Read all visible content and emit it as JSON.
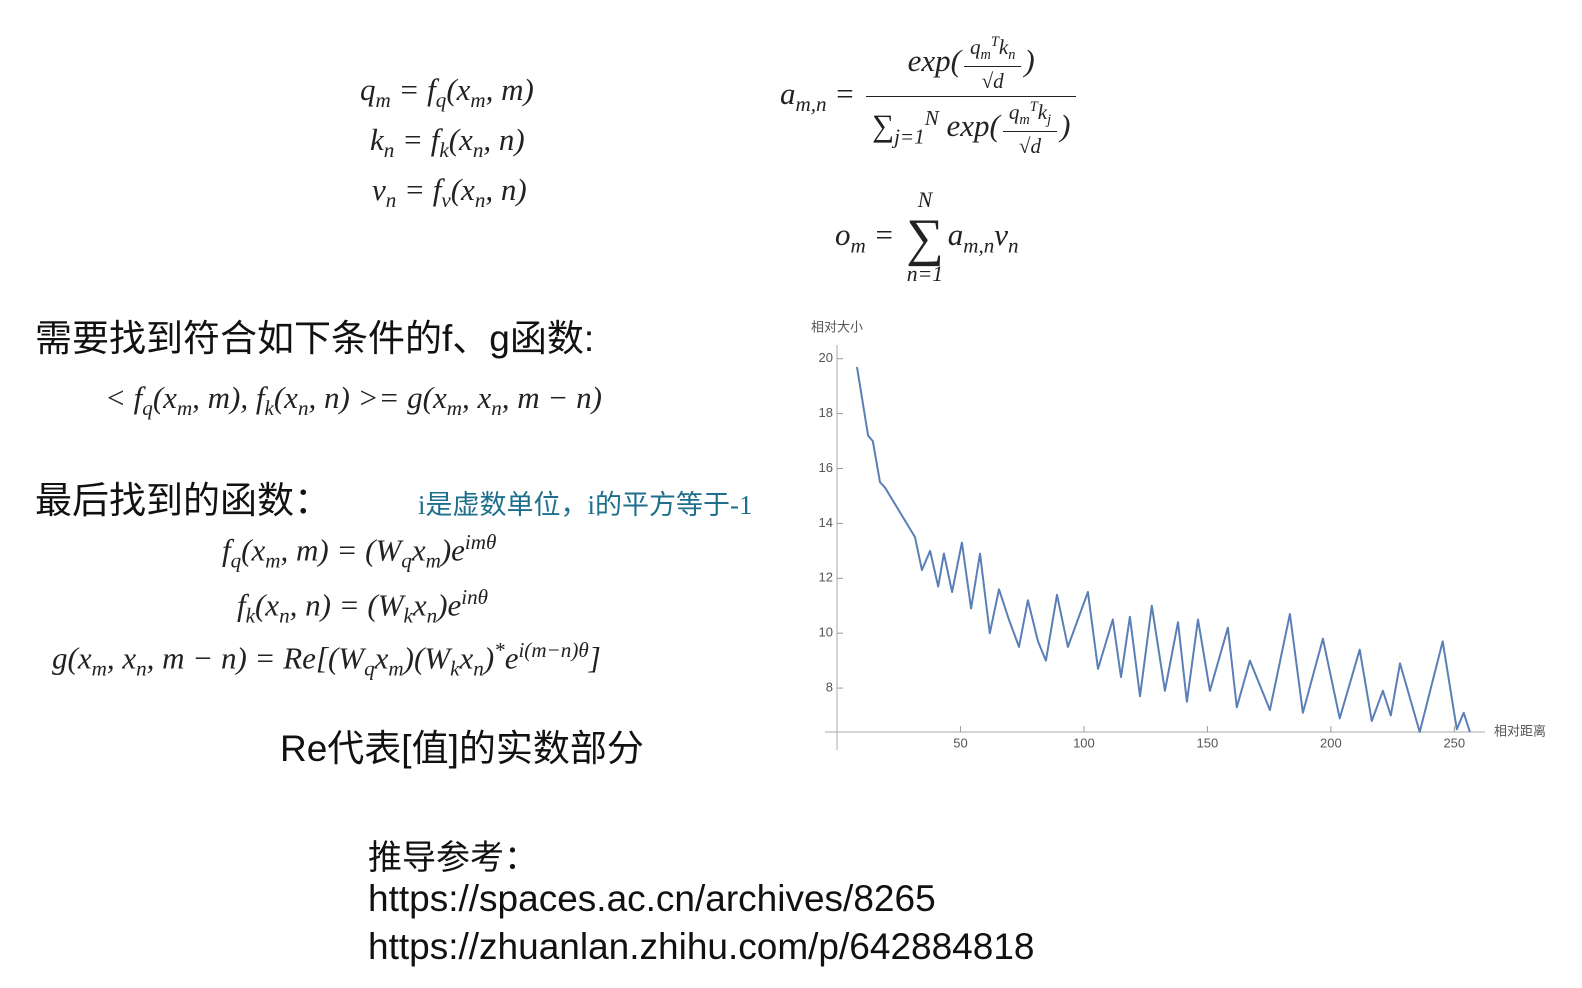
{
  "formulas": {
    "q": [
      "q",
      {
        "sub": "m"
      },
      " = f",
      {
        "sub": "q"
      },
      "(x",
      {
        "sub": "m"
      },
      ", m)"
    ],
    "k": [
      "k",
      {
        "sub": "n"
      },
      " = f",
      {
        "sub": "k"
      },
      "(x",
      {
        "sub": "n"
      },
      ", n)"
    ],
    "v": [
      "v",
      {
        "sub": "n"
      },
      " = f",
      {
        "sub": "v"
      },
      "(x",
      {
        "sub": "n"
      },
      ", n)"
    ],
    "a": [
      "a",
      {
        "sub": "m,n"
      },
      " = ",
      {
        "num": [
          "exp(",
          {
            "num": [
              "q",
              {
                "sub": "m"
              },
              {
                "sup": "T"
              },
              "k",
              {
                "sub": "n"
              }
            ],
            "den": [
              "√d"
            ]
          },
          ")"
        ],
        "den": [
          "∑",
          {
            "sub": "j=1"
          },
          {
            "sup": "N"
          },
          " exp(",
          {
            "num": [
              "q",
              {
                "sub": "m"
              },
              {
                "sup": "T"
              },
              "k",
              {
                "sub": "j"
              }
            ],
            "den": [
              "√d"
            ]
          },
          ")"
        ]
      }
    ],
    "o": [
      "o",
      {
        "sub": "m"
      },
      " = ",
      {
        "sym": "∑",
        "over": "N",
        "under": "n=1"
      },
      "a",
      {
        "sub": "m,n"
      },
      "v",
      {
        "sub": "n"
      }
    ],
    "condition": [
      "< f",
      {
        "sub": "q"
      },
      "(x",
      {
        "sub": "m"
      },
      ", m), f",
      {
        "sub": "k"
      },
      "(x",
      {
        "sub": "n"
      },
      ", n) >= g(x",
      {
        "sub": "m"
      },
      ", x",
      {
        "sub": "n"
      },
      ", m − n)"
    ],
    "fq": [
      "f",
      {
        "sub": "q"
      },
      "(x",
      {
        "sub": "m"
      },
      ", m) = (W",
      {
        "sub": "q"
      },
      "x",
      {
        "sub": "m"
      },
      ")e",
      {
        "sup": "imθ"
      }
    ],
    "fk": [
      "f",
      {
        "sub": "k"
      },
      "(x",
      {
        "sub": "n"
      },
      ", n) = (W",
      {
        "sub": "k"
      },
      "x",
      {
        "sub": "n"
      },
      ")e",
      {
        "sup": "inθ"
      }
    ],
    "g": [
      "g(x",
      {
        "sub": "m"
      },
      ", x",
      {
        "sub": "n"
      },
      ", m − n) = Re[(W",
      {
        "sub": "q"
      },
      "x",
      {
        "sub": "m"
      },
      ")(W",
      {
        "sub": "k"
      },
      "x",
      {
        "sub": "n"
      },
      ")",
      {
        "sup": "*"
      },
      "e",
      {
        "sup": "i(m−n)θ"
      },
      "]"
    ]
  },
  "heading_condition": "需要找到符合如下条件的f、g函数:",
  "heading_result": "最后找到的函数：",
  "note_imaginary": "i是虚数单位，i的平方等于-1",
  "note_re": "Re代表[值]的实数部分",
  "references": {
    "title": "推导参考：",
    "links": [
      "https://spaces.ac.cn/archives/8265",
      "https://zhuanlan.zhihu.com/p/642884818"
    ]
  },
  "chart_data": {
    "type": "line",
    "y_label": "相对大小",
    "x_label": "相对距离",
    "color": "#5a7fb6",
    "x": [
      8.1,
      12.6,
      14.5,
      17.4,
      19.5,
      31.6,
      34.4,
      37.7,
      41,
      43.3,
      46.6,
      50.6,
      54.3,
      57.9,
      61.9,
      65.6,
      69.6,
      73.7,
      77.3,
      81.4,
      84.6,
      89.1,
      93.5,
      101.6,
      105.7,
      111.7,
      115,
      118.6,
      122.7,
      127.5,
      132.8,
      138.1,
      141.7,
      146.2,
      151,
      158.3,
      161.9,
      167.2,
      175.3,
      183.4,
      188.7,
      196.8,
      203.6,
      211.7,
      216.6,
      221.1,
      224.3,
      228,
      236,
      245.3,
      251,
      253.8,
      256.3
    ],
    "values": [
      19.7,
      17.2,
      17.0,
      15.5,
      15.3,
      13.5,
      12.3,
      13.0,
      11.7,
      12.9,
      11.5,
      13.3,
      10.9,
      12.9,
      10.0,
      11.6,
      10.5,
      9.5,
      11.2,
      9.7,
      9.0,
      11.4,
      9.5,
      11.5,
      8.7,
      10.5,
      8.4,
      10.6,
      7.7,
      11.0,
      7.9,
      10.4,
      7.5,
      10.5,
      7.9,
      10.2,
      7.3,
      9.0,
      7.2,
      10.7,
      7.1,
      9.8,
      6.9,
      9.4,
      6.8,
      7.9,
      7.0,
      8.9,
      6.4,
      9.7,
      6.5,
      7.1,
      6.4
    ],
    "xlim": [
      0,
      260
    ],
    "ylim": [
      6.4,
      20.5
    ],
    "xticks": [
      50,
      100,
      150,
      200,
      250
    ],
    "yticks": [
      8,
      10,
      12,
      14,
      16,
      18,
      20
    ]
  }
}
